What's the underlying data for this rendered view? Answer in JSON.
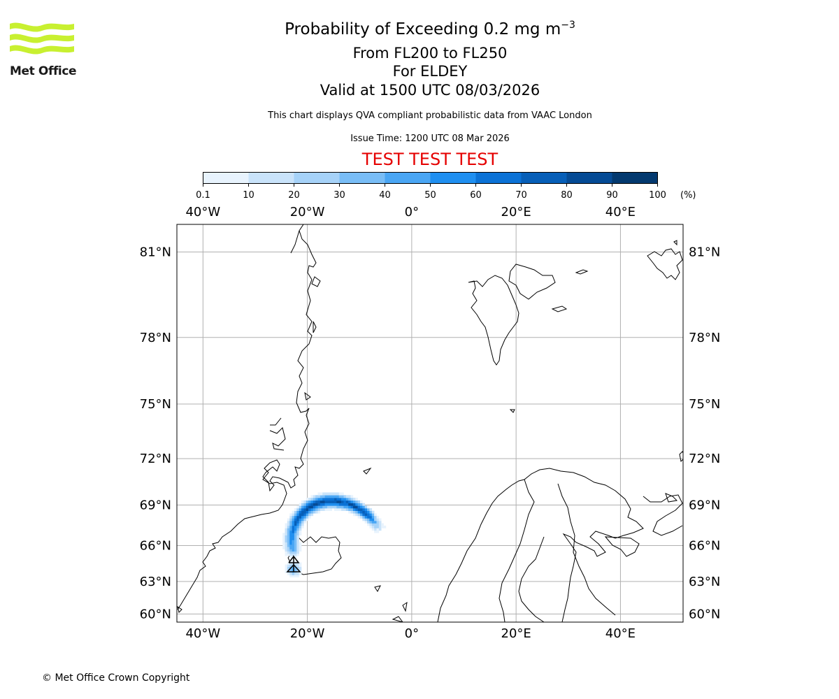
{
  "logo": {
    "text": "Met Office",
    "wave_color": "#c8f030"
  },
  "title": {
    "main": "Probability of Exceeding 0.2 mg m",
    "exponent": "−3",
    "level": "From FL200 to FL250",
    "volcano": "For ELDEY",
    "valid": "Valid at 1500 UTC 08/03/2026"
  },
  "subtitle": "This chart displays QVA compliant probabilistic data from VAAC London",
  "issue_time": "Issue Time: 1200 UTC 08 Mar 2026",
  "test_banner": "TEST TEST TEST",
  "test_color": "#e50000",
  "colorbar": {
    "ticks": [
      "0.1",
      "10",
      "20",
      "30",
      "40",
      "50",
      "60",
      "70",
      "80",
      "90",
      "100"
    ],
    "unit": "(%)",
    "colors": [
      "#e8f3fd",
      "#c9e3fa",
      "#a6d2f8",
      "#79bdf6",
      "#4aa6f4",
      "#1f8ff0",
      "#0b72d6",
      "#075fb8",
      "#054b95",
      "#03396f",
      "#022a52"
    ]
  },
  "map": {
    "lon_labels": [
      "40°W",
      "20°W",
      "0°",
      "20°E",
      "40°E"
    ],
    "lat_labels": [
      "81°N",
      "78°N",
      "75°N",
      "72°N",
      "69°N",
      "66°N",
      "63°N",
      "60°N"
    ],
    "lons": [
      -40,
      -20,
      0,
      20,
      40
    ],
    "lats": [
      81,
      78,
      75,
      72,
      69,
      66,
      63,
      60
    ],
    "lon_range": [
      -45,
      52
    ],
    "lat_range": [
      59.2,
      81.8
    ],
    "grid_color": "#b0b0b0",
    "plume_peak_probability_percent": 90,
    "plume_source": {
      "name": "ELDEY",
      "lon": -22.9,
      "lat": 63.7
    }
  },
  "copyright": "© Met Office Crown Copyright"
}
